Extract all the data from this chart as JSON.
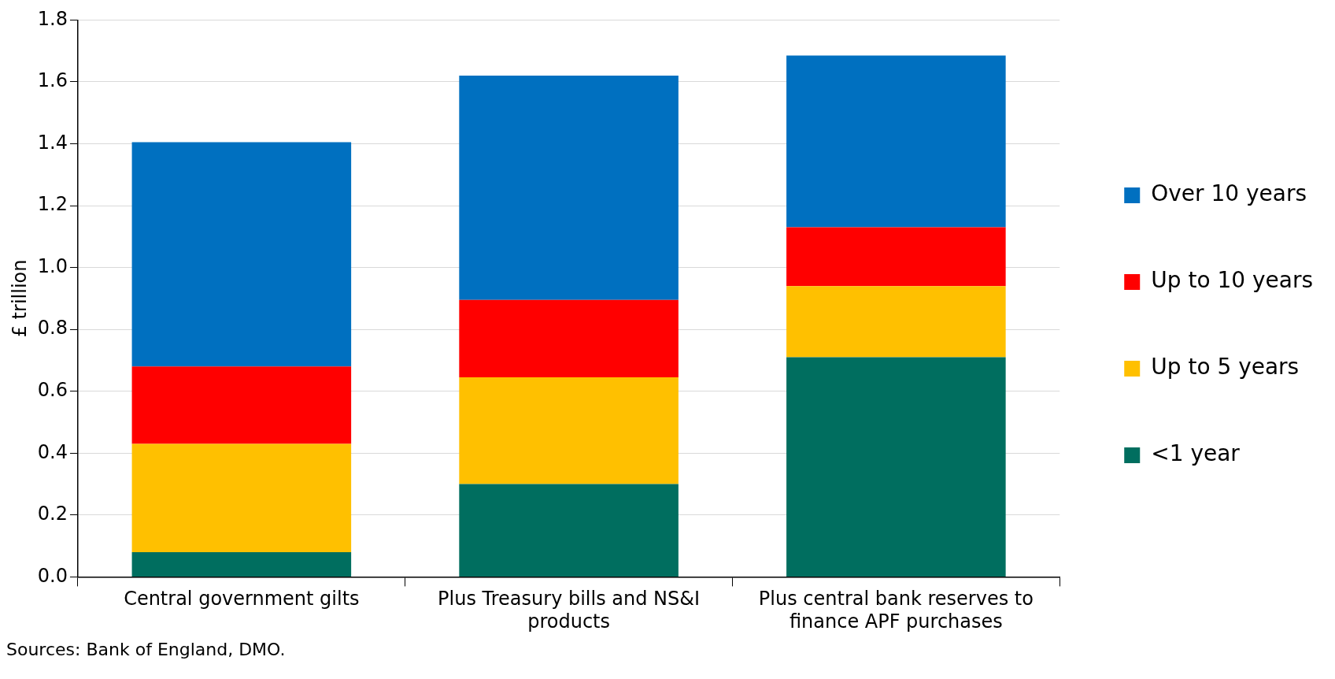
{
  "chart_data": {
    "type": "bar",
    "ylabel": "£ trillion",
    "categories": [
      "Central government gilts",
      "Plus Treasury bills and NS&I products",
      "Plus central bank reserves to finance APF purchases"
    ],
    "stacked": true,
    "series": [
      {
        "name": "<1 year",
        "color": "#006e5f",
        "values": [
          0.08,
          0.3,
          0.71
        ]
      },
      {
        "name": "Up to 5 years",
        "color": "#ffc000",
        "values": [
          0.35,
          0.345,
          0.23
        ]
      },
      {
        "name": "Up to 10 years",
        "color": "#ff0000",
        "values": [
          0.25,
          0.25,
          0.19
        ]
      },
      {
        "name": "Over 10 years",
        "color": "#0070c0",
        "values": [
          0.725,
          0.725,
          0.555
        ]
      }
    ],
    "ylim": [
      0,
      1.8
    ],
    "yticks": [
      {
        "value": 0,
        "label": "0.0"
      },
      {
        "value": 0.2,
        "label": "0.2"
      },
      {
        "value": 0.4,
        "label": "0.4"
      },
      {
        "value": 0.6,
        "label": "0.6"
      },
      {
        "value": 0.8,
        "label": "0.8"
      },
      {
        "value": 1,
        "label": "1.0"
      },
      {
        "value": 1.2,
        "label": "1.2"
      },
      {
        "value": 1.4,
        "label": "1.4"
      },
      {
        "value": 1.6,
        "label": "1.6"
      },
      {
        "value": 1.8,
        "label": "1.8"
      }
    ],
    "grid": "y",
    "legend": "right",
    "annotations": [
      "Sources: Bank of England, DMO."
    ]
  }
}
